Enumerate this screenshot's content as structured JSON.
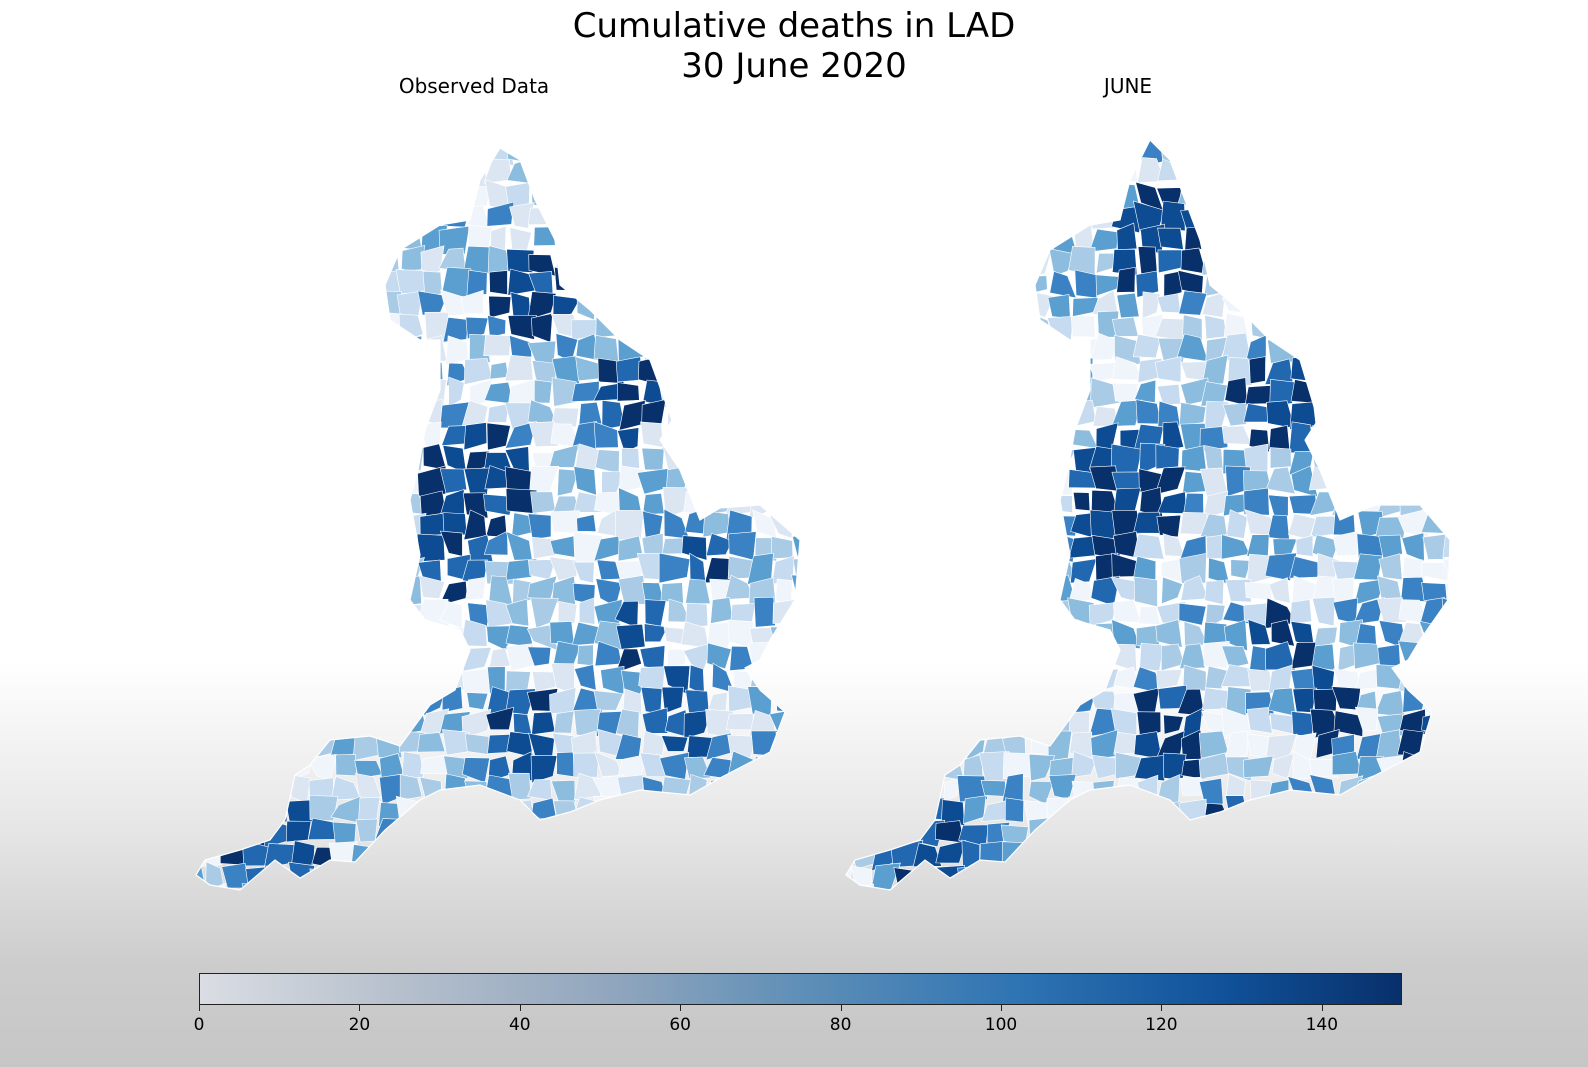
{
  "title": {
    "line1": "Cumulative deaths in LAD",
    "line2": "30 June 2020"
  },
  "panels": [
    {
      "name": "observed",
      "label": "Observed Data"
    },
    {
      "name": "june",
      "label": "JUNE"
    }
  ],
  "colorbar": {
    "min": 0,
    "max": 150,
    "ticks": [
      "0",
      "20",
      "40",
      "60",
      "80",
      "100",
      "120",
      "140"
    ],
    "tick_values": [
      0,
      20,
      40,
      60,
      80,
      100,
      120,
      140
    ],
    "colors": {
      "low": "#dadde3",
      "mid": "#5f8fb7",
      "high": "#08306b"
    }
  },
  "palette": [
    "#f0f5fb",
    "#dbe6f2",
    "#c6dbef",
    "#a9cbe6",
    "#8cbddf",
    "#5a9fd0",
    "#3a82c3",
    "#2168b0",
    "#0d4c93",
    "#08306b"
  ],
  "chart_data": {
    "type": "heatmap",
    "title": "Cumulative deaths in LAD — 30 June 2020",
    "panels": [
      "Observed Data",
      "JUNE"
    ],
    "scale": {
      "min": 0,
      "max": 150
    }
  }
}
